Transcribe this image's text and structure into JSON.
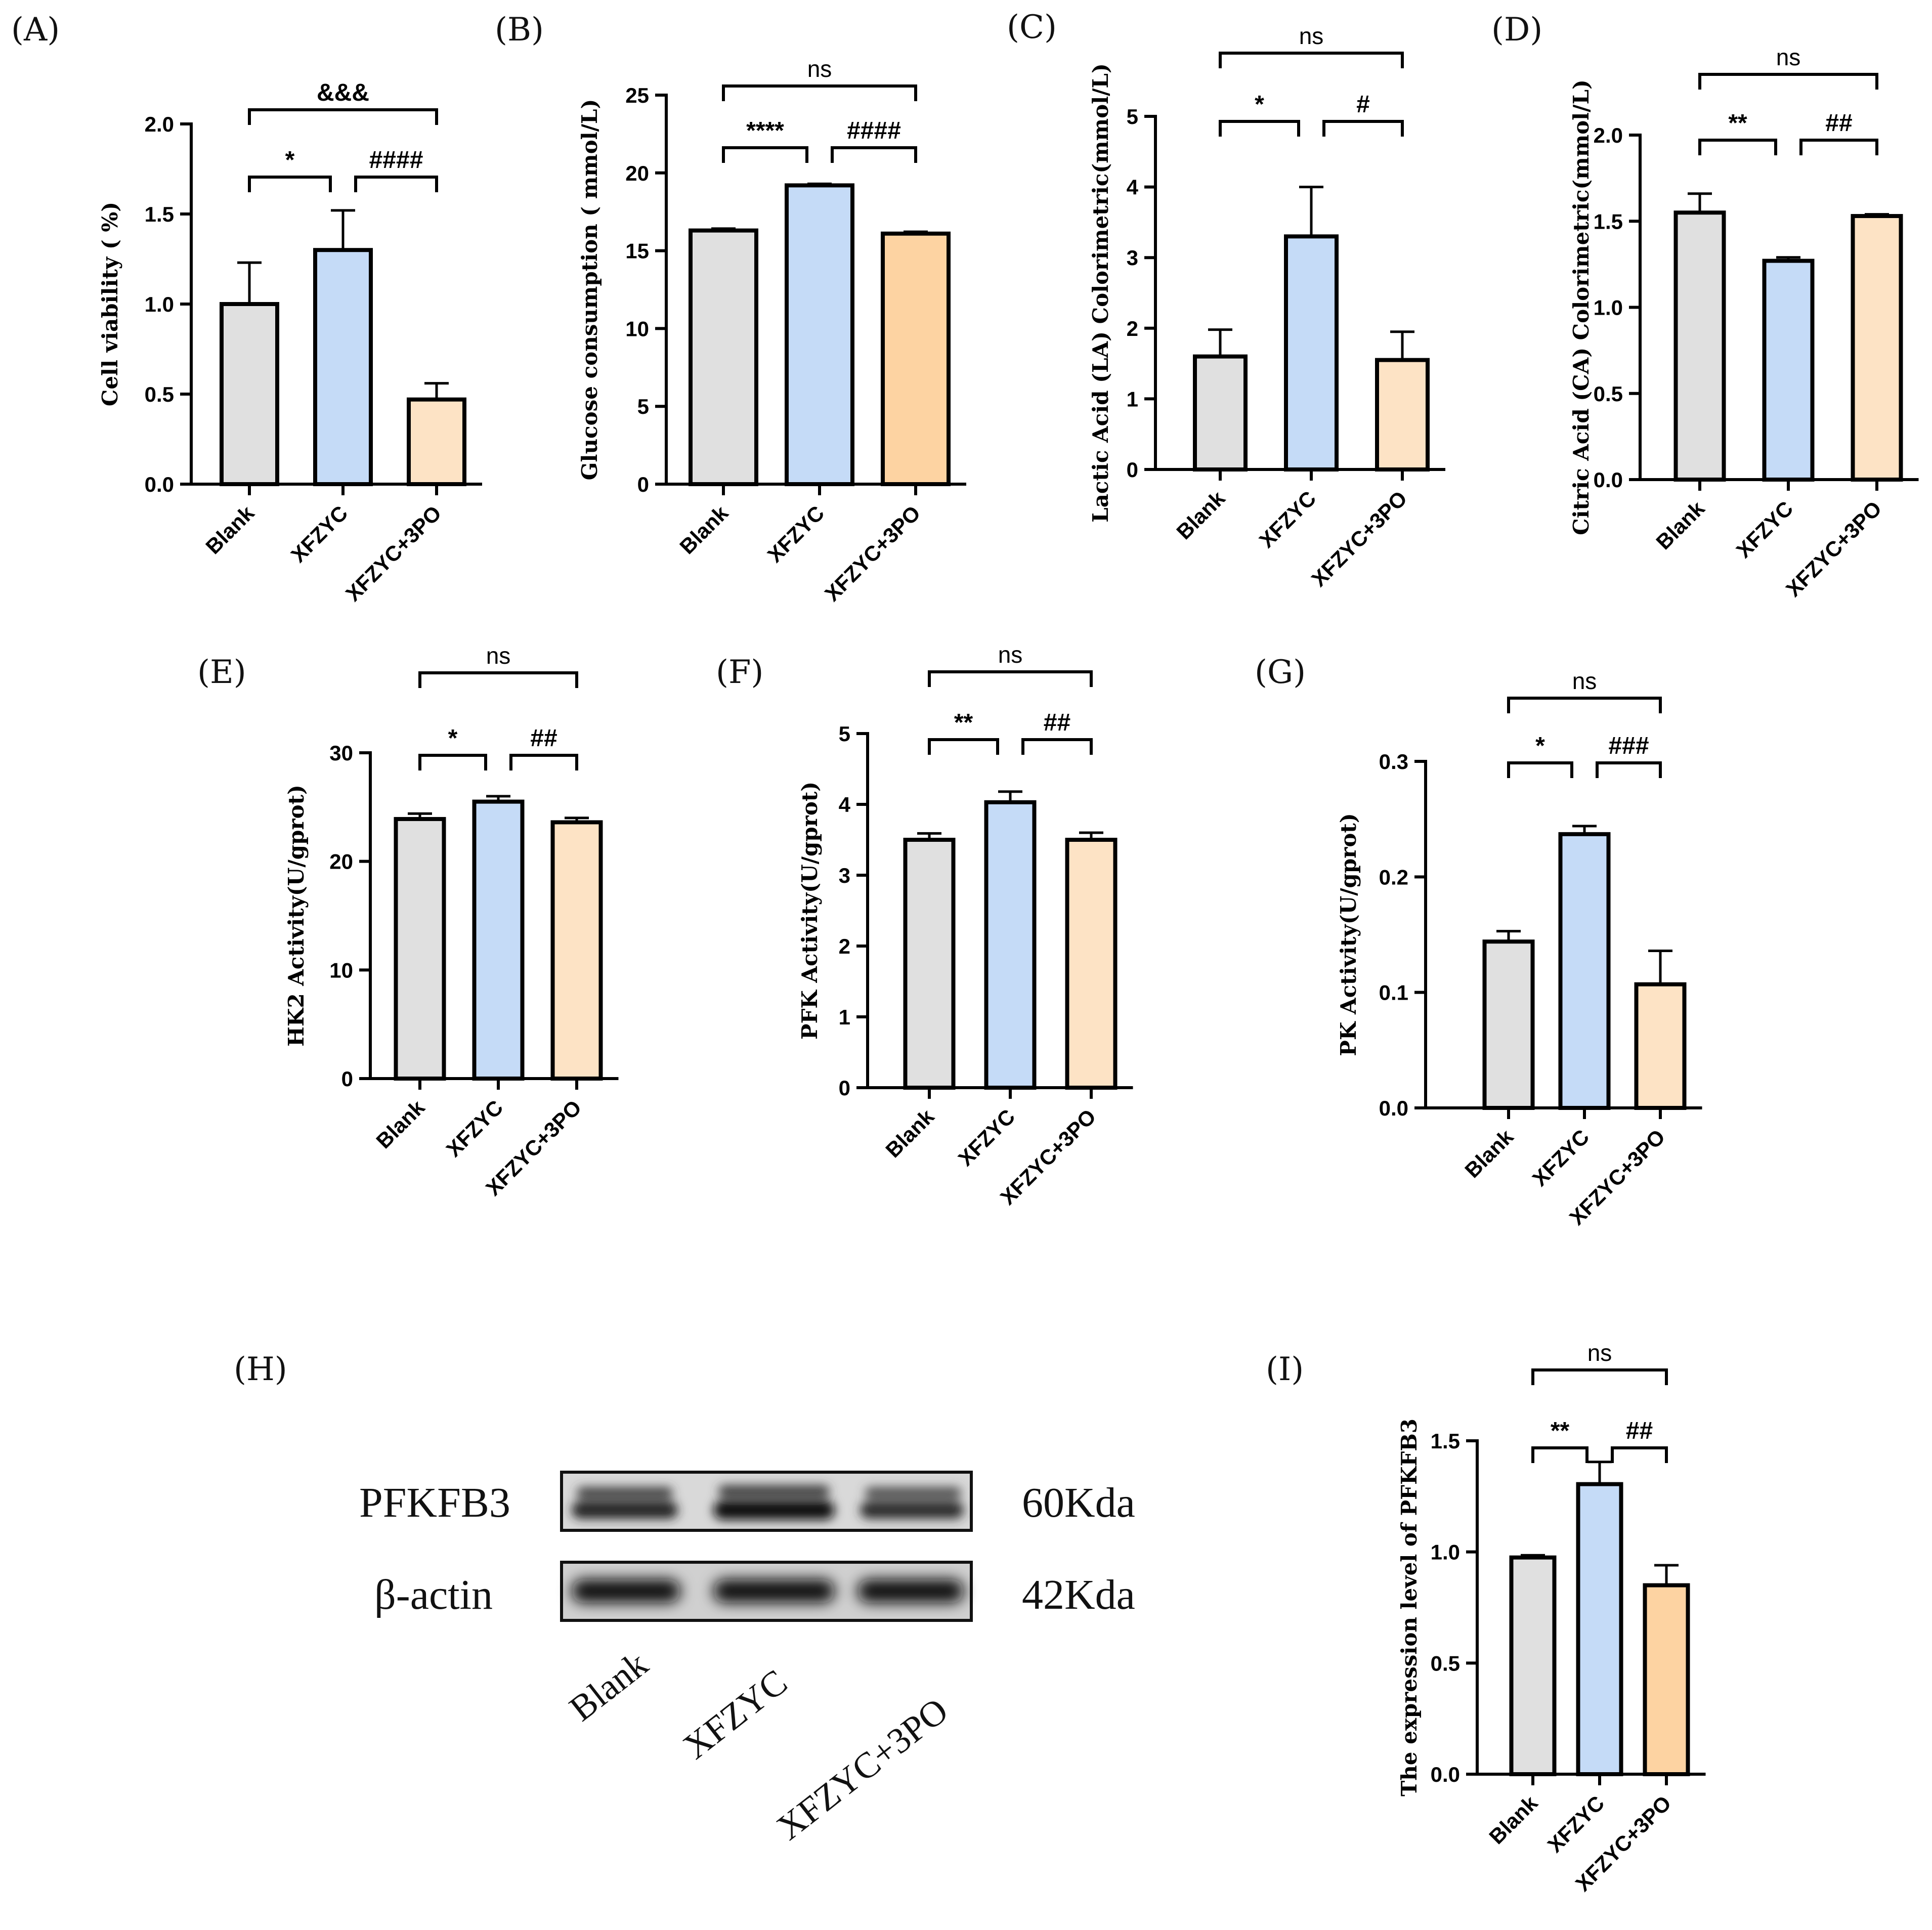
{
  "chart_data": [
    {
      "panel": "(A)",
      "type": "bar",
      "categories": [
        "Blank",
        "XFZYC",
        "XFZYC+3PO"
      ],
      "values": [
        1.0,
        1.3,
        0.47
      ],
      "errors": [
        0.23,
        0.22,
        0.09
      ],
      "colors": [
        "#e0e0e0",
        "#c5dbf7",
        "#fde3c5"
      ],
      "ylabel": "Cell viability ( %)",
      "ylim": [
        0,
        2.0
      ],
      "yticks": [
        "0.0",
        "0.5",
        "1.0",
        "1.5",
        "2.0"
      ],
      "comparisons": [
        {
          "from": 0,
          "to": 1,
          "label": "*"
        },
        {
          "from": 1,
          "to": 2,
          "label": "####"
        },
        {
          "from": 0,
          "to": 2,
          "label": "&&&"
        }
      ]
    },
    {
      "panel": "(B)",
      "type": "bar",
      "categories": [
        "Blank",
        "XFZYC",
        "XFZYC+3PO"
      ],
      "values": [
        16.3,
        19.2,
        16.1
      ],
      "errors": [
        0.12,
        0.1,
        0.12
      ],
      "colors": [
        "#e0e0e0",
        "#c5dbf7",
        "#fdd3a2"
      ],
      "ylabel": "Glucose consumption ( mmol/L)",
      "ylim": [
        0,
        25
      ],
      "yticks": [
        "0",
        "5",
        "10",
        "15",
        "20",
        "25"
      ],
      "comparisons": [
        {
          "from": 0,
          "to": 1,
          "label": "****"
        },
        {
          "from": 1,
          "to": 2,
          "label": "####"
        },
        {
          "from": 0,
          "to": 2,
          "label": "ns"
        }
      ]
    },
    {
      "panel": "(C)",
      "type": "bar",
      "categories": [
        "Blank",
        "XFZYC",
        "XFZYC+3PO"
      ],
      "values": [
        1.6,
        3.3,
        1.55
      ],
      "errors": [
        0.38,
        0.7,
        0.4
      ],
      "colors": [
        "#e0e0e0",
        "#c5dbf7",
        "#fde3c5"
      ],
      "ylabel": "Lactic Acid (LA) Colorimetric(mmol/L)",
      "ylim": [
        0,
        5
      ],
      "yticks": [
        "0",
        "1",
        "2",
        "3",
        "4",
        "5"
      ],
      "comparisons": [
        {
          "from": 0,
          "to": 1,
          "label": "*"
        },
        {
          "from": 1,
          "to": 2,
          "label": "#"
        },
        {
          "from": 0,
          "to": 2,
          "label": "ns"
        }
      ]
    },
    {
      "panel": "(D)",
      "type": "bar",
      "categories": [
        "Blank",
        "XFZYC",
        "XFZYC+3PO"
      ],
      "values": [
        1.55,
        1.27,
        1.53
      ],
      "errors": [
        0.11,
        0.02,
        0.01
      ],
      "colors": [
        "#e0e0e0",
        "#c5dbf7",
        "#fde3c5"
      ],
      "ylabel": "Citric Acid (CA) Colorimetric(mmol/L)",
      "ylim": [
        0,
        2.0
      ],
      "yticks": [
        "0.0",
        "0.5",
        "1.0",
        "1.5",
        "2.0"
      ],
      "comparisons": [
        {
          "from": 0,
          "to": 1,
          "label": "**"
        },
        {
          "from": 1,
          "to": 2,
          "label": "##"
        },
        {
          "from": 0,
          "to": 2,
          "label": "ns"
        }
      ]
    },
    {
      "panel": "(E)",
      "type": "bar",
      "categories": [
        "Blank",
        "XFZYC",
        "XFZYC+3PO"
      ],
      "values": [
        23.9,
        25.5,
        23.6
      ],
      "errors": [
        0.5,
        0.5,
        0.4
      ],
      "colors": [
        "#e0e0e0",
        "#c5dbf7",
        "#fde3c5"
      ],
      "ylabel": "HK2 Activity(U/gprot)",
      "ylim": [
        0,
        30
      ],
      "yticks": [
        "0",
        "10",
        "20",
        "30"
      ],
      "comparisons": [
        {
          "from": 0,
          "to": 1,
          "label": "*"
        },
        {
          "from": 1,
          "to": 2,
          "label": "##"
        },
        {
          "from": 0,
          "to": 2,
          "label": "ns"
        }
      ]
    },
    {
      "panel": "(F)",
      "type": "bar",
      "categories": [
        "Blank",
        "XFZYC",
        "XFZYC+3PO"
      ],
      "values": [
        3.5,
        4.03,
        3.5
      ],
      "errors": [
        0.09,
        0.15,
        0.1
      ],
      "colors": [
        "#e0e0e0",
        "#c5dbf7",
        "#fde3c5"
      ],
      "ylabel": "PFK Activity(U/gprot)",
      "ylim": [
        0,
        5
      ],
      "yticks": [
        "0",
        "1",
        "2",
        "3",
        "4",
        "5"
      ],
      "comparisons": [
        {
          "from": 0,
          "to": 1,
          "label": "**"
        },
        {
          "from": 1,
          "to": 2,
          "label": "##"
        },
        {
          "from": 0,
          "to": 2,
          "label": "ns"
        }
      ]
    },
    {
      "panel": "(G)",
      "type": "bar",
      "categories": [
        "Blank",
        "XFZYC",
        "XFZYC+3PO"
      ],
      "values": [
        0.144,
        0.237,
        0.107
      ],
      "errors": [
        0.009,
        0.007,
        0.029
      ],
      "colors": [
        "#e0e0e0",
        "#c5dbf7",
        "#fde3c5"
      ],
      "ylabel": "PK Activity(U/gprot)",
      "ylim": [
        0,
        0.3
      ],
      "yticks": [
        "0.0",
        "0.1",
        "0.2",
        "0.3"
      ],
      "comparisons": [
        {
          "from": 0,
          "to": 1,
          "label": "*"
        },
        {
          "from": 1,
          "to": 2,
          "label": "###"
        },
        {
          "from": 0,
          "to": 2,
          "label": "ns"
        }
      ]
    },
    {
      "panel": "(I)",
      "type": "bar",
      "categories": [
        "Blank",
        "XFZYC",
        "XFZYC+3PO"
      ],
      "values": [
        0.975,
        1.305,
        0.85
      ],
      "errors": [
        0.01,
        0.1,
        0.09
      ],
      "colors": [
        "#e0e0e0",
        "#c5dbf7",
        "#fdd3a2"
      ],
      "ylabel": "The expression level of PFKFB3",
      "ylim": [
        0,
        1.5
      ],
      "yticks": [
        "0.0",
        "0.5",
        "1.0",
        "1.5"
      ],
      "comparisons": [
        {
          "from": 0,
          "to": 1,
          "label": "**"
        },
        {
          "from": 1,
          "to": 2,
          "label": "##"
        },
        {
          "from": 0,
          "to": 2,
          "label": "ns"
        }
      ]
    }
  ],
  "blot": {
    "panel": "(H)",
    "rows": [
      {
        "protein": "PFKFB3",
        "size": "60Kda"
      },
      {
        "protein": "β-actin",
        "size": "42Kda"
      }
    ],
    "lanes": [
      "Blank",
      "XFZYC",
      "XFZYC+3PO"
    ]
  }
}
